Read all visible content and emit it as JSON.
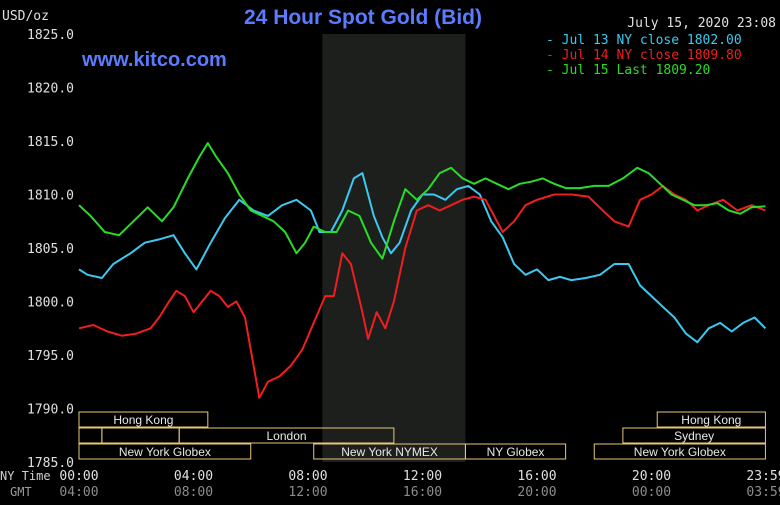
{
  "header": {
    "unit": "USD/oz",
    "title": "24 Hour Spot Gold (Bid)",
    "timestamp": "July 15, 2020 23:08",
    "website": "www.kitco.com"
  },
  "colors": {
    "background": "#000000",
    "title": "#5a7cff",
    "jul13": "#3cc8f0",
    "jul14": "#f01e1e",
    "jul15": "#28dc28",
    "nymex_shade": "#1c1f1c",
    "session_box": "#e8c878"
  },
  "chart_data": {
    "type": "line",
    "title": "24 Hour Spot Gold (Bid)",
    "ylabel": "USD/oz",
    "ylim": [
      1785,
      1825
    ],
    "yticks": [
      "1825.0",
      "1820.0",
      "1815.0",
      "1810.0",
      "1805.0",
      "1800.0",
      "1795.0",
      "1790.0",
      "1785.0"
    ],
    "xlim": [
      0,
      24
    ],
    "x_ticks_ny": [
      "00:00",
      "04:00",
      "08:00",
      "12:00",
      "16:00",
      "20:00",
      "23:59"
    ],
    "x_ticks_gmt": [
      "04:00",
      "08:00",
      "12:00",
      "16:00",
      "20:00",
      "00:00",
      "03:59"
    ],
    "x_row_labels": [
      "NY Time",
      "GMT"
    ],
    "nymex_session_hours": [
      8.5,
      13.5
    ],
    "grid": false,
    "legend_position": "top-right",
    "series": [
      {
        "name": "Jul 13 NY close 1802.00",
        "color": "#3cc8f0",
        "points": [
          [
            0,
            1803
          ],
          [
            0.3,
            1802.5
          ],
          [
            0.8,
            1802.2
          ],
          [
            1.2,
            1803.5
          ],
          [
            1.8,
            1804.5
          ],
          [
            2.3,
            1805.5
          ],
          [
            2.8,
            1805.8
          ],
          [
            3.3,
            1806.2
          ],
          [
            3.7,
            1804.5
          ],
          [
            4.1,
            1803
          ],
          [
            4.6,
            1805.5
          ],
          [
            5.1,
            1807.8
          ],
          [
            5.6,
            1809.5
          ],
          [
            6.1,
            1808.5
          ],
          [
            6.6,
            1808
          ],
          [
            7.1,
            1809
          ],
          [
            7.6,
            1809.5
          ],
          [
            8.1,
            1808.5
          ],
          [
            8.4,
            1806.5
          ],
          [
            8.8,
            1806.5
          ],
          [
            9.2,
            1808.5
          ],
          [
            9.6,
            1811.5
          ],
          [
            9.9,
            1812
          ],
          [
            10.1,
            1810
          ],
          [
            10.3,
            1808
          ],
          [
            10.6,
            1806
          ],
          [
            10.9,
            1804.5
          ],
          [
            11.2,
            1805.5
          ],
          [
            11.6,
            1808.5
          ],
          [
            12.0,
            1810
          ],
          [
            12.4,
            1810
          ],
          [
            12.8,
            1809.5
          ],
          [
            13.2,
            1810.5
          ],
          [
            13.6,
            1810.8
          ],
          [
            14.0,
            1810
          ],
          [
            14.4,
            1807.5
          ],
          [
            14.8,
            1806
          ],
          [
            15.2,
            1803.5
          ],
          [
            15.6,
            1802.5
          ],
          [
            16.0,
            1803
          ],
          [
            16.4,
            1802
          ],
          [
            16.8,
            1802.3
          ],
          [
            17.2,
            1802
          ],
          [
            17.7,
            1802.2
          ],
          [
            18.2,
            1802.5
          ],
          [
            18.7,
            1803.5
          ],
          [
            19.2,
            1803.5
          ],
          [
            19.6,
            1801.5
          ],
          [
            20.0,
            1800.5
          ],
          [
            20.4,
            1799.5
          ],
          [
            20.8,
            1798.5
          ],
          [
            21.2,
            1797
          ],
          [
            21.6,
            1796.2
          ],
          [
            22.0,
            1797.5
          ],
          [
            22.4,
            1798
          ],
          [
            22.8,
            1797.2
          ],
          [
            23.2,
            1798
          ],
          [
            23.6,
            1798.5
          ],
          [
            23.98,
            1797.5
          ]
        ]
      },
      {
        "name": "Jul 14 NY close 1809.80",
        "color": "#f01e1e",
        "points": [
          [
            0,
            1797.5
          ],
          [
            0.5,
            1797.8
          ],
          [
            1.0,
            1797.2
          ],
          [
            1.5,
            1796.8
          ],
          [
            2.0,
            1797
          ],
          [
            2.5,
            1797.5
          ],
          [
            2.8,
            1798.5
          ],
          [
            3.1,
            1799.8
          ],
          [
            3.4,
            1801
          ],
          [
            3.7,
            1800.5
          ],
          [
            4.0,
            1799
          ],
          [
            4.3,
            1800
          ],
          [
            4.6,
            1801
          ],
          [
            4.9,
            1800.5
          ],
          [
            5.2,
            1799.5
          ],
          [
            5.5,
            1800
          ],
          [
            5.8,
            1798.5
          ],
          [
            6.1,
            1794
          ],
          [
            6.3,
            1791
          ],
          [
            6.6,
            1792.5
          ],
          [
            7.0,
            1793
          ],
          [
            7.4,
            1794
          ],
          [
            7.8,
            1795.5
          ],
          [
            8.2,
            1798
          ],
          [
            8.6,
            1800.5
          ],
          [
            8.9,
            1800.5
          ],
          [
            9.2,
            1804.5
          ],
          [
            9.5,
            1803.5
          ],
          [
            9.9,
            1799
          ],
          [
            10.1,
            1796.5
          ],
          [
            10.4,
            1799
          ],
          [
            10.7,
            1797.5
          ],
          [
            11.0,
            1800
          ],
          [
            11.4,
            1805
          ],
          [
            11.8,
            1808.5
          ],
          [
            12.2,
            1809
          ],
          [
            12.6,
            1808.5
          ],
          [
            13.0,
            1809
          ],
          [
            13.4,
            1809.5
          ],
          [
            13.8,
            1809.8
          ],
          [
            14.2,
            1809.5
          ],
          [
            14.5,
            1808
          ],
          [
            14.8,
            1806.5
          ],
          [
            15.2,
            1807.5
          ],
          [
            15.6,
            1809
          ],
          [
            16.0,
            1809.5
          ],
          [
            16.6,
            1810
          ],
          [
            17.2,
            1810
          ],
          [
            17.8,
            1809.8
          ],
          [
            18.3,
            1808.5
          ],
          [
            18.7,
            1807.5
          ],
          [
            19.2,
            1807
          ],
          [
            19.6,
            1809.5
          ],
          [
            20.0,
            1810
          ],
          [
            20.4,
            1810.8
          ],
          [
            20.8,
            1810
          ],
          [
            21.2,
            1809.5
          ],
          [
            21.6,
            1808.5
          ],
          [
            22.0,
            1809
          ],
          [
            22.5,
            1809.5
          ],
          [
            23.0,
            1808.5
          ],
          [
            23.5,
            1809
          ],
          [
            23.98,
            1808.5
          ]
        ]
      },
      {
        "name": "Jul 15 Last 1809.20",
        "color": "#28dc28",
        "points": [
          [
            0,
            1809
          ],
          [
            0.4,
            1808
          ],
          [
            0.9,
            1806.5
          ],
          [
            1.4,
            1806.2
          ],
          [
            1.9,
            1807.5
          ],
          [
            2.4,
            1808.8
          ],
          [
            2.9,
            1807.5
          ],
          [
            3.3,
            1808.8
          ],
          [
            3.8,
            1811.5
          ],
          [
            4.2,
            1813.5
          ],
          [
            4.5,
            1814.8
          ],
          [
            4.8,
            1813.5
          ],
          [
            5.2,
            1812
          ],
          [
            5.6,
            1810
          ],
          [
            6.0,
            1808.5
          ],
          [
            6.4,
            1808
          ],
          [
            6.8,
            1807.5
          ],
          [
            7.2,
            1806.5
          ],
          [
            7.6,
            1804.5
          ],
          [
            7.9,
            1805.5
          ],
          [
            8.2,
            1807
          ],
          [
            8.6,
            1806.5
          ],
          [
            9.0,
            1806.5
          ],
          [
            9.4,
            1808.5
          ],
          [
            9.8,
            1808
          ],
          [
            10.2,
            1805.5
          ],
          [
            10.6,
            1804
          ],
          [
            11.0,
            1807.5
          ],
          [
            11.4,
            1810.5
          ],
          [
            11.8,
            1809.5
          ],
          [
            12.2,
            1810.5
          ],
          [
            12.6,
            1812
          ],
          [
            13.0,
            1812.5
          ],
          [
            13.4,
            1811.5
          ],
          [
            13.8,
            1811
          ],
          [
            14.2,
            1811.5
          ],
          [
            14.6,
            1811
          ],
          [
            15.0,
            1810.5
          ],
          [
            15.4,
            1811
          ],
          [
            15.8,
            1811.2
          ],
          [
            16.2,
            1811.5
          ],
          [
            16.6,
            1811
          ],
          [
            17.0,
            1810.6
          ],
          [
            17.5,
            1810.6
          ],
          [
            18.0,
            1810.8
          ],
          [
            18.5,
            1810.8
          ],
          [
            19.0,
            1811.5
          ],
          [
            19.5,
            1812.5
          ],
          [
            19.9,
            1812
          ],
          [
            20.3,
            1811
          ],
          [
            20.7,
            1810
          ],
          [
            21.1,
            1809.5
          ],
          [
            21.5,
            1809
          ],
          [
            21.9,
            1809
          ],
          [
            22.3,
            1809.2
          ],
          [
            22.7,
            1808.5
          ],
          [
            23.1,
            1808.2
          ],
          [
            23.5,
            1808.8
          ],
          [
            23.98,
            1808.9
          ]
        ]
      }
    ],
    "legend": [
      {
        "label": "Jul 13 NY close 1802.00",
        "color": "#3cc8f0"
      },
      {
        "label": "Jul 14 NY close 1809.80",
        "color": "#f01e1e"
      },
      {
        "label": "Jul 15 Last 1809.20",
        "color": "#28dc28"
      }
    ]
  },
  "sessions": {
    "row1": [
      {
        "label": "Hong Kong",
        "start": 0,
        "end": 4.5
      },
      {
        "label": "Hong Kong",
        "start": 20.2,
        "end": 23.98
      }
    ],
    "row2": [
      {
        "label": "",
        "start": 0,
        "end": 0.8
      },
      {
        "label": "",
        "start": 0.8,
        "end": 3.5
      },
      {
        "label": "London",
        "start": 3.5,
        "end": 11.0
      },
      {
        "label": "Sydney",
        "start": 19.0,
        "end": 23.98
      }
    ],
    "row3": [
      {
        "label": "New York Globex",
        "start": 0,
        "end": 6.0
      },
      {
        "label": "New York NYMEX",
        "start": 8.2,
        "end": 13.5
      },
      {
        "label": "NY Globex",
        "start": 13.5,
        "end": 17.0
      },
      {
        "label": "New York Globex",
        "start": 18.0,
        "end": 23.98
      }
    ]
  }
}
